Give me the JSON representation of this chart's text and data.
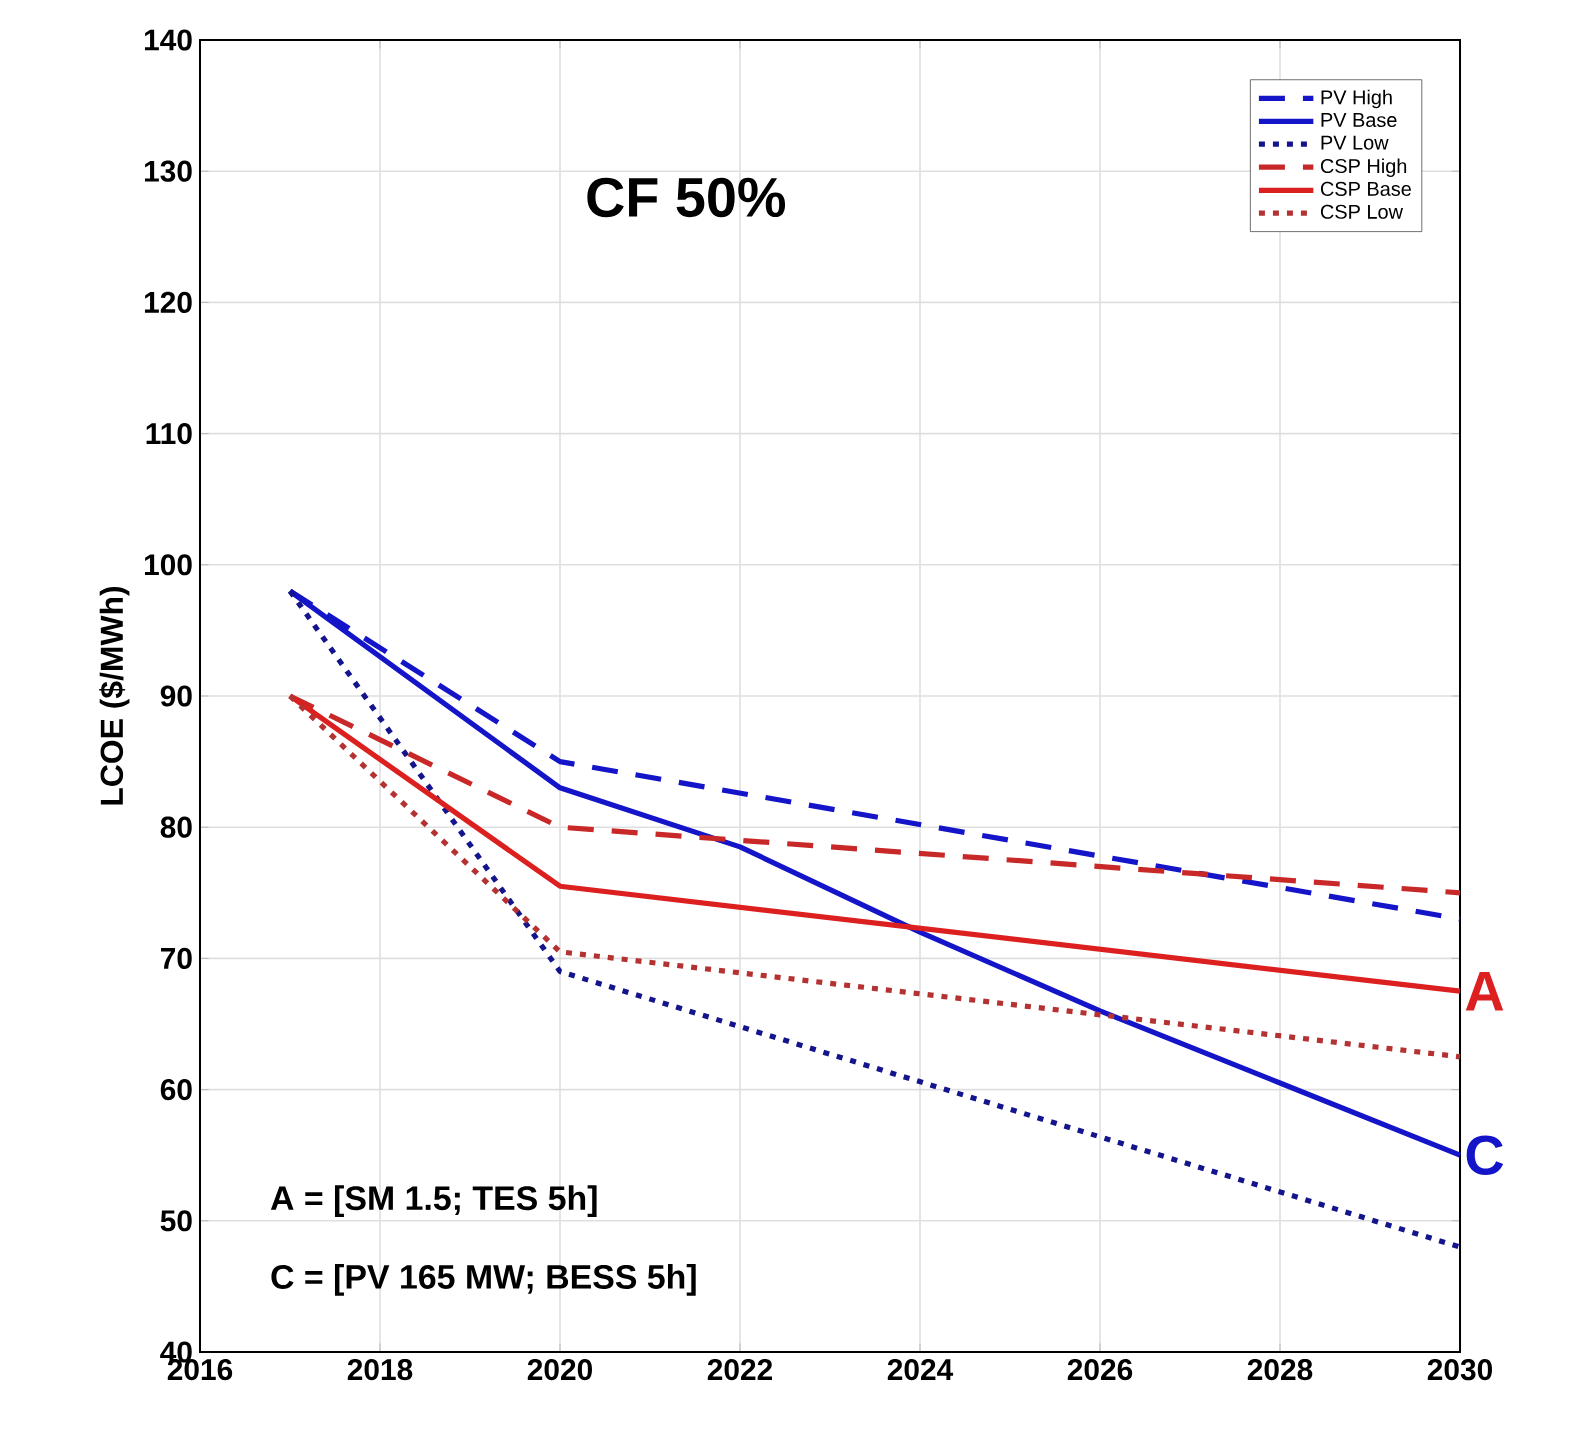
{
  "chart_data": {
    "type": "line",
    "ylabel": "LCOE ($/MWh)",
    "xlim": [
      2016,
      2030
    ],
    "xticks": [
      2016,
      2018,
      2020,
      2022,
      2024,
      2026,
      2028,
      2030
    ],
    "ylim": [
      40,
      140
    ],
    "yticks": [
      40,
      50,
      60,
      70,
      80,
      90,
      100,
      110,
      120,
      130,
      140
    ],
    "grid": true,
    "legend": "top right",
    "marker": "none",
    "series": [
      {
        "name": "PV High",
        "color": "#1414c8",
        "line_style": "dashed",
        "x": [
          2017,
          2020,
          2030
        ],
        "values": [
          98,
          85,
          73
        ]
      },
      {
        "name": "PV Base",
        "color": "#1414c8",
        "line_style": "solid",
        "x": [
          2017,
          2020,
          2022,
          2024,
          2026,
          2028,
          2030
        ],
        "values": [
          98,
          83,
          78.5,
          72,
          66,
          60.5,
          55
        ]
      },
      {
        "name": "PV Low",
        "color": "#14148c",
        "line_style": "dotted",
        "x": [
          2017,
          2020,
          2030
        ],
        "values": [
          98,
          69,
          48
        ]
      },
      {
        "name": "CSP High",
        "color": "#c82828",
        "line_style": "dashed",
        "x": [
          2017,
          2020,
          2030
        ],
        "values": [
          90,
          80,
          75
        ]
      },
      {
        "name": "CSP Base",
        "color": "#dc2020",
        "line_style": "solid",
        "x": [
          2017,
          2020,
          2030
        ],
        "values": [
          90,
          75.5,
          67.5
        ]
      },
      {
        "name": "CSP Low",
        "color": "#b43232",
        "line_style": "dotted",
        "x": [
          2017,
          2020,
          2030
        ],
        "values": [
          90,
          70.5,
          62.5
        ]
      }
    ],
    "annotations": [
      "CF 50%",
      "A = [SM 1.5; TES 5h]",
      "C = [PV 165 MW; BESS 5h]",
      {
        "text": "A",
        "x": 2030,
        "y": 67.5
      },
      {
        "text": "C",
        "x": 2030,
        "y": 55
      }
    ]
  }
}
